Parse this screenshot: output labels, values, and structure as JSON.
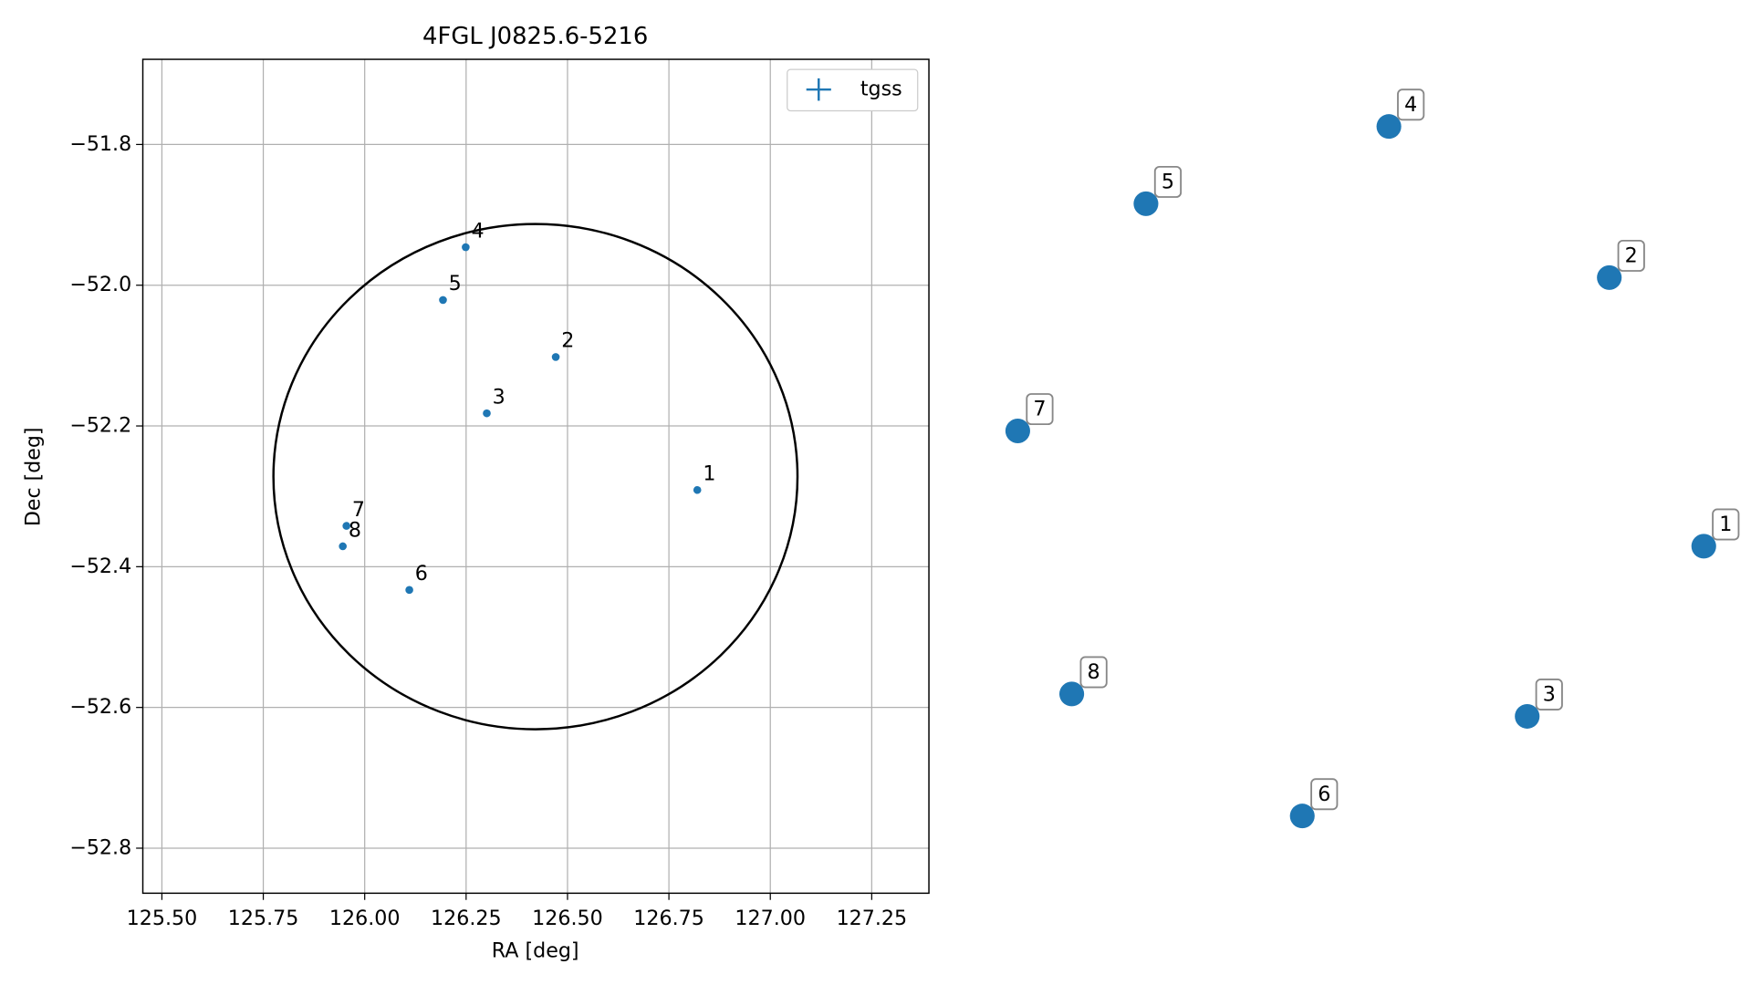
{
  "chart_data": {
    "type": "scatter",
    "title": "4FGL J0825.6-5216",
    "x_label": "RA [deg]",
    "y_label": "Dec [deg]",
    "xlim": [
      125.453,
      127.391
    ],
    "ylim": [
      -52.864,
      -51.679
    ],
    "xticks": [
      {
        "value": 125.5,
        "label": "125.50"
      },
      {
        "value": 125.75,
        "label": "125.75"
      },
      {
        "value": 126,
        "label": "126.00"
      },
      {
        "value": 126.25,
        "label": "126.25"
      },
      {
        "value": 126.5,
        "label": "126.50"
      },
      {
        "value": 126.75,
        "label": "126.75"
      },
      {
        "value": 127,
        "label": "127.00"
      },
      {
        "value": 127.25,
        "label": "127.25"
      }
    ],
    "yticks": [
      {
        "value": -51.8,
        "label": "−51.8"
      },
      {
        "value": -52.0,
        "label": "−52.0"
      },
      {
        "value": -52.2,
        "label": "−52.2"
      },
      {
        "value": -52.4,
        "label": "−52.4"
      },
      {
        "value": -52.6,
        "label": "−52.6"
      },
      {
        "value": -52.8,
        "label": "−52.8"
      }
    ],
    "grid": true,
    "legend": "upper right",
    "series": [
      {
        "name": "tgss",
        "color": "#1f77b4",
        "x": [
          126.82,
          126.471,
          126.301,
          126.249,
          126.193,
          126.11,
          125.955,
          125.946
        ],
        "values": [
          -52.291,
          -52.102,
          -52.182,
          -51.946,
          -52.021,
          -52.433,
          -52.342,
          -52.371
        ],
        "labels": [
          "1",
          "2",
          "3",
          "4",
          "5",
          "6",
          "7",
          "8"
        ]
      }
    ],
    "circle": {
      "center": [
        126.421,
        -52.272
      ],
      "radius": [
        0.646,
        0.359
      ],
      "color": "#000000"
    }
  }
}
